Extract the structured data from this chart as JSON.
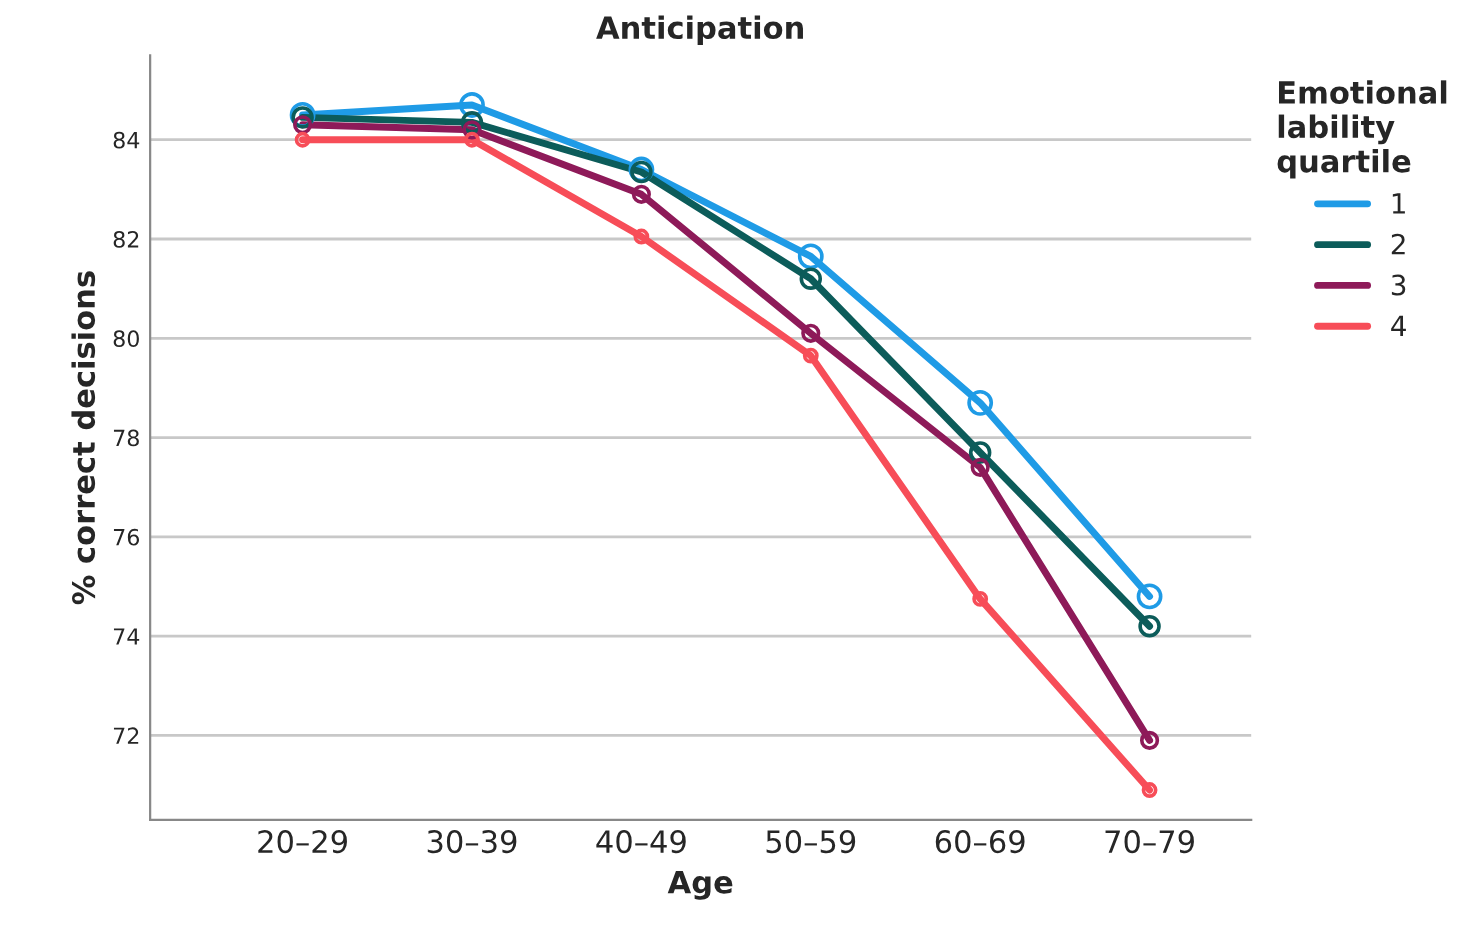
{
  "chart_data": {
    "type": "line",
    "title": "Anticipation",
    "xlabel": "Age",
    "ylabel": "% correct decisions",
    "legend_title": "Emotional\nlability\nquartile",
    "categories": [
      "20–29",
      "30–39",
      "40–49",
      "50–59",
      "60–69",
      "70–79"
    ],
    "series": [
      {
        "name": "1",
        "color": "#1f9be6",
        "values": [
          84.5,
          84.7,
          83.4,
          81.65,
          78.7,
          74.8
        ]
      },
      {
        "name": "2",
        "color": "#0c5c5a",
        "values": [
          84.45,
          84.35,
          83.35,
          81.2,
          77.7,
          74.2
        ]
      },
      {
        "name": "3",
        "color": "#8e1a59",
        "values": [
          84.3,
          84.2,
          82.9,
          80.1,
          77.4,
          71.9
        ]
      },
      {
        "name": "4",
        "color": "#f74d58",
        "values": [
          84.0,
          84.0,
          82.05,
          79.65,
          74.75,
          70.9
        ]
      }
    ],
    "ylim": [
      70.3,
      85.7
    ],
    "yticks": [
      72,
      74,
      76,
      78,
      80,
      82,
      84
    ],
    "grid": "y",
    "legend": "top right",
    "marker": "circle",
    "line_style": "solid"
  }
}
